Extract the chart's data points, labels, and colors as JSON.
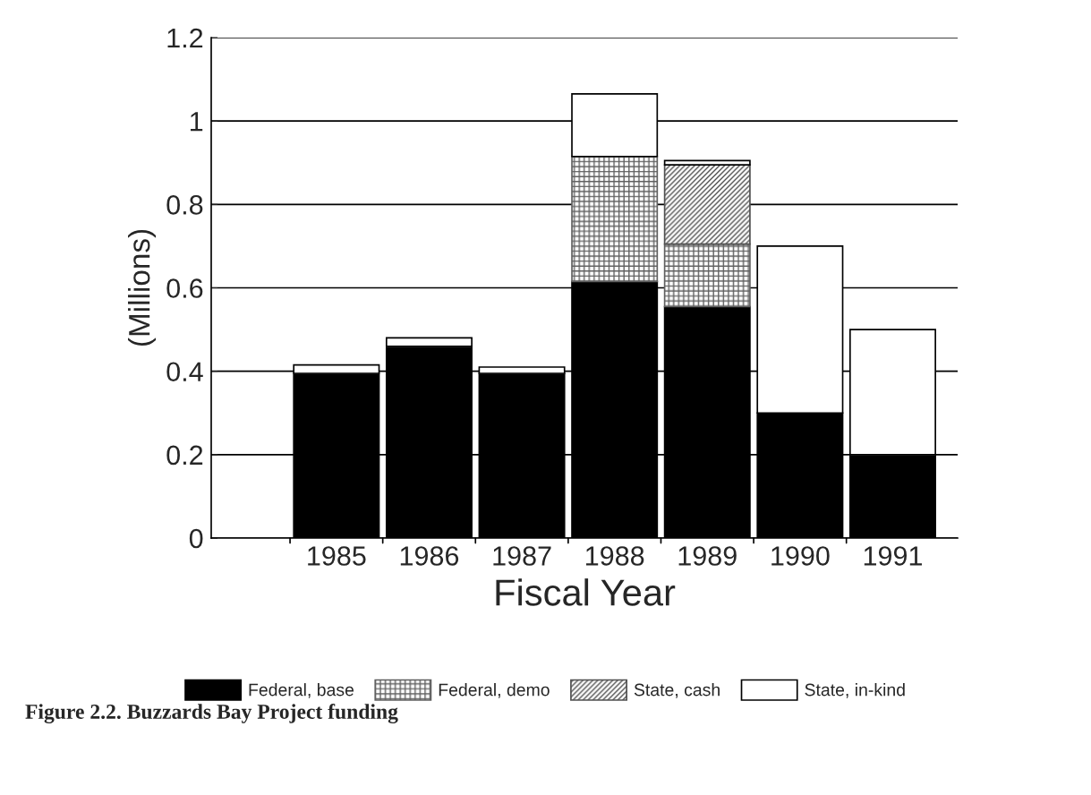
{
  "chart_data": {
    "type": "bar",
    "stacked": true,
    "title": "Figure 2.2. Buzzards Bay Project funding",
    "xlabel": "Fiscal Year",
    "ylabel": "(Millions)",
    "categories": [
      "1985",
      "1986",
      "1987",
      "1988",
      "1989",
      "1990",
      "1991"
    ],
    "series": [
      {
        "name": "Federal, base",
        "color": "#000000",
        "values": [
          0.395,
          0.46,
          0.395,
          0.615,
          0.555,
          0.3,
          0.2
        ]
      },
      {
        "name": "Federal, demo",
        "color": "#606060",
        "values": [
          0,
          0,
          0,
          0.3,
          0.15,
          0,
          0
        ]
      },
      {
        "name": "State, cash",
        "color": "#505050",
        "values": [
          0,
          0,
          0,
          0,
          0.19,
          0,
          0
        ]
      },
      {
        "name": "State, in-kind",
        "color": "#ffffff",
        "values": [
          0.02,
          0.02,
          0.015,
          0.15,
          0.01,
          0.4,
          0.3
        ]
      }
    ],
    "ylim": [
      0,
      1.2
    ],
    "yticks": [
      0,
      0.2,
      0.4,
      0.6,
      0.8,
      1,
      1.2
    ],
    "grid": "y",
    "legend": "bottom"
  }
}
